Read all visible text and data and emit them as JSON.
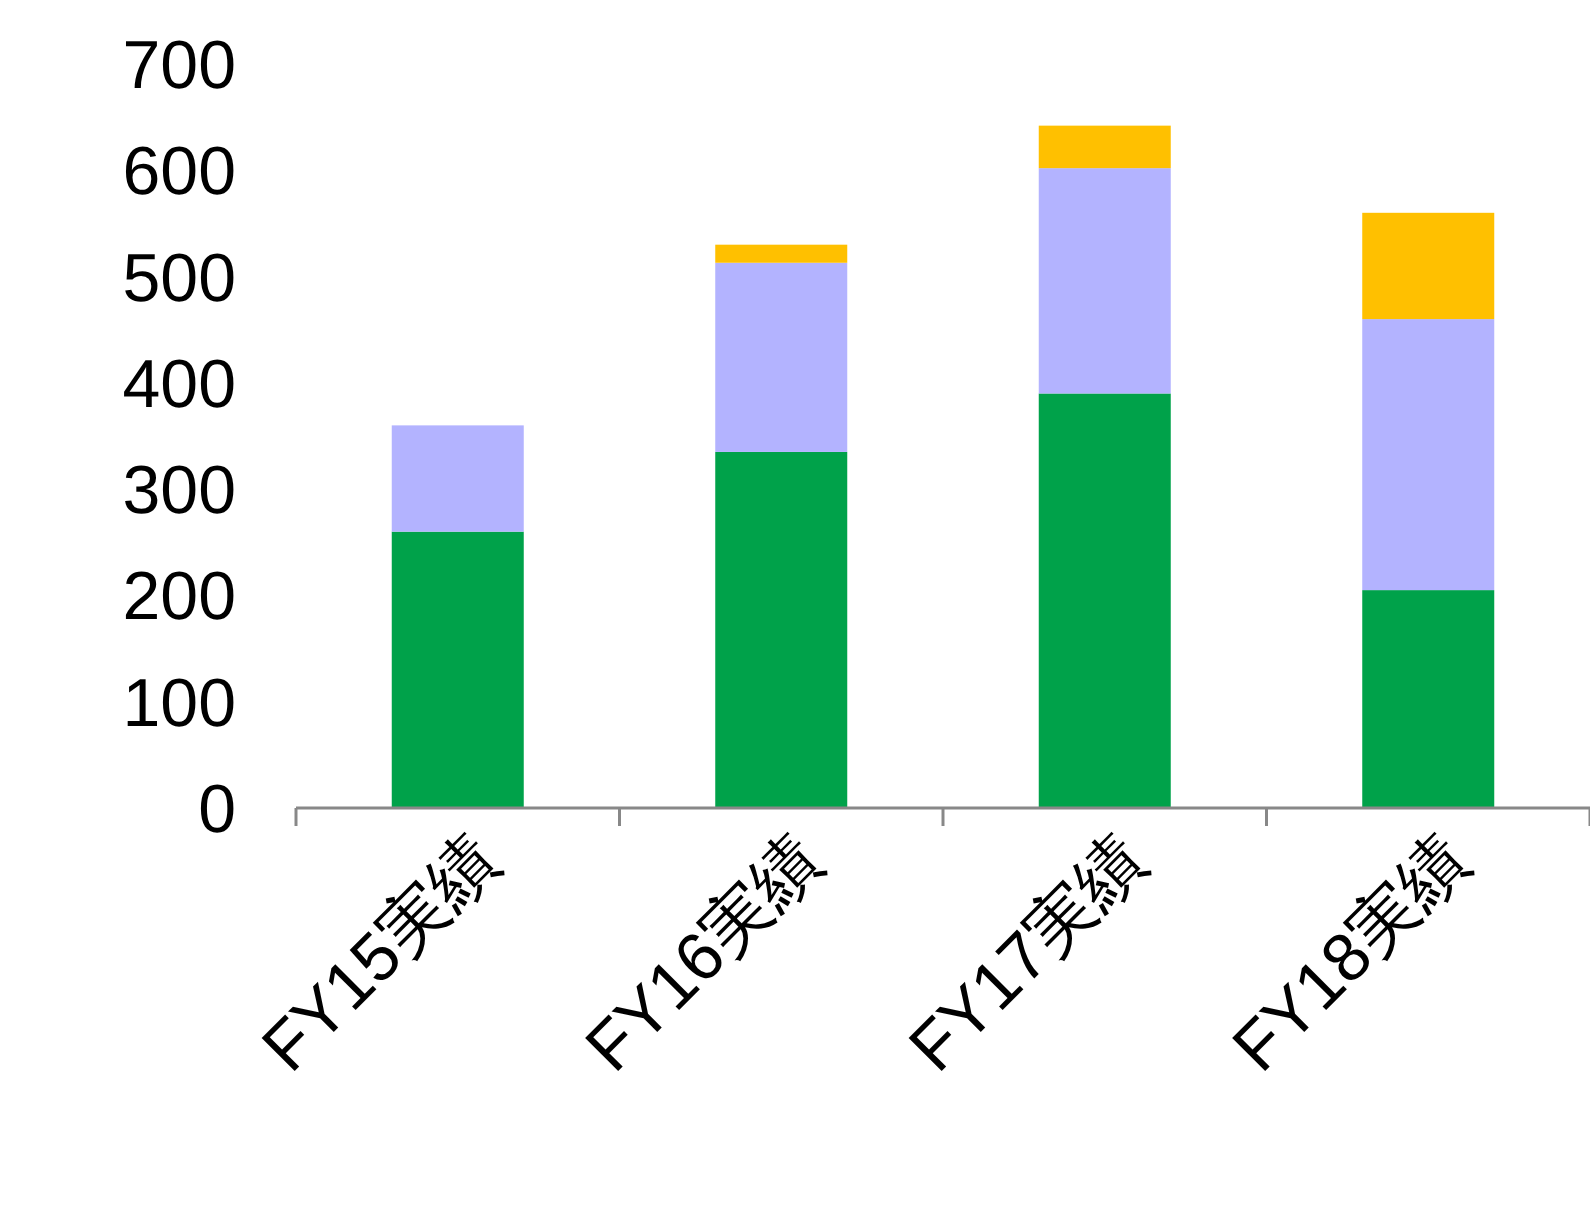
{
  "chart_data": {
    "type": "bar",
    "stacked": true,
    "categories": [
      "FY15実績",
      "FY16実績",
      "FY17実績",
      "FY18実績"
    ],
    "series": [
      {
        "color": "#00a24a",
        "values": [
          260,
          335,
          390,
          205
        ]
      },
      {
        "color": "#b3b3ff",
        "values": [
          100,
          178,
          212,
          255
        ]
      },
      {
        "color": "#ffc000",
        "values": [
          null,
          17,
          40,
          100
        ]
      }
    ],
    "ylim": [
      0,
      700
    ],
    "yticks": [
      0,
      100,
      200,
      300,
      400,
      500,
      600,
      700
    ]
  }
}
